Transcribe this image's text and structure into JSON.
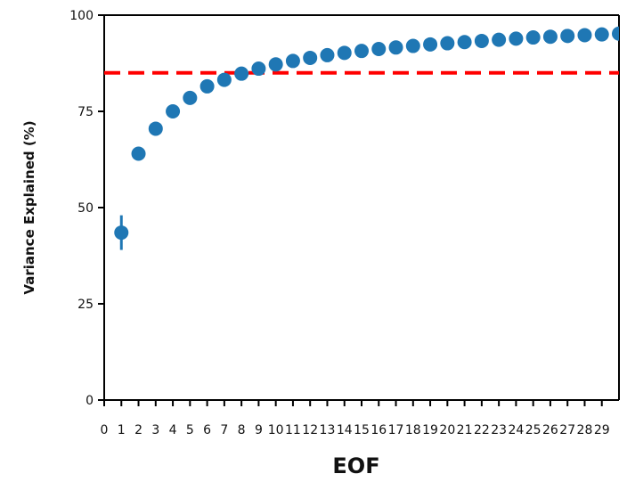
{
  "chart_data": {
    "type": "scatter",
    "title": "",
    "xlabel": "EOF",
    "ylabel": "Variance Explained (%)",
    "xlim": [
      0,
      30
    ],
    "ylim": [
      0,
      100
    ],
    "xticks": [
      "0",
      "1",
      "2",
      "3",
      "4",
      "5",
      "6",
      "7",
      "8",
      "9",
      "10",
      "11",
      "12",
      "13",
      "14",
      "15",
      "16",
      "17",
      "18",
      "19",
      "20",
      "21",
      "22",
      "23",
      "24",
      "25",
      "26",
      "27",
      "28",
      "29"
    ],
    "yticks": [
      "0",
      "25",
      "50",
      "75",
      "100"
    ],
    "grid": false,
    "series": [
      {
        "x": [
          1,
          2,
          3,
          4,
          5,
          6,
          7,
          8,
          9,
          10,
          11,
          12,
          13,
          14,
          15,
          16,
          17,
          18,
          19,
          20,
          21,
          22,
          23,
          24,
          25,
          26,
          27,
          28,
          29,
          30
        ],
        "y": [
          43.5,
          64,
          70.5,
          75,
          78.5,
          81.5,
          83.2,
          84.8,
          86.1,
          87.2,
          88.1,
          88.9,
          89.6,
          90.2,
          90.7,
          91.2,
          91.6,
          92.0,
          92.4,
          92.7,
          93.0,
          93.3,
          93.6,
          93.9,
          94.2,
          94.4,
          94.6,
          94.8,
          95.0,
          95.2
        ],
        "error": [
          4.5,
          1,
          0.5,
          0.5,
          0.4,
          0.3,
          0.3,
          0.3,
          0.2,
          0.2,
          0.2,
          0.2,
          0.2,
          0.2,
          0.2,
          0.2,
          0.2,
          0.2,
          0.2,
          0.2,
          0.2,
          0.2,
          0.2,
          0.2,
          0.2,
          0.2,
          0.2,
          0.2,
          0.2,
          0.2
        ],
        "color": "#1f77b4"
      }
    ],
    "reference_line": {
      "y": 85,
      "style": "dashed",
      "color": "#ff0000"
    }
  }
}
